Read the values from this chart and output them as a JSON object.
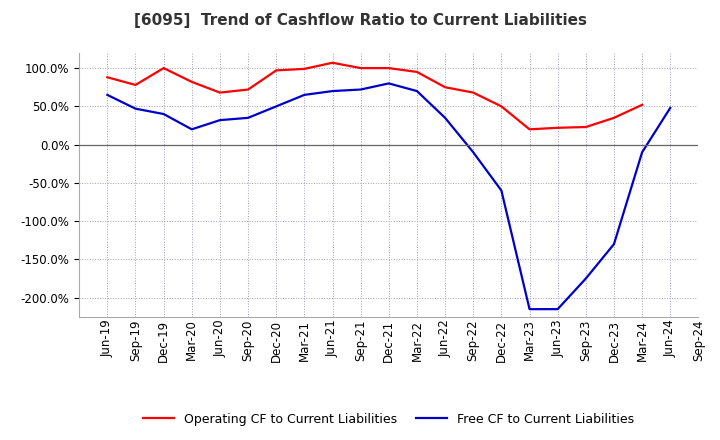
{
  "title": "[6095]  Trend of Cashflow Ratio to Current Liabilities",
  "x_labels": [
    "Jun-19",
    "Sep-19",
    "Dec-19",
    "Mar-20",
    "Jun-20",
    "Sep-20",
    "Dec-20",
    "Mar-21",
    "Jun-21",
    "Sep-21",
    "Dec-21",
    "Mar-22",
    "Jun-22",
    "Sep-22",
    "Dec-22",
    "Mar-23",
    "Jun-23",
    "Sep-23",
    "Dec-23",
    "Mar-24",
    "Jun-24",
    "Sep-24"
  ],
  "operating_cf": [
    88,
    78,
    100,
    82,
    68,
    72,
    97,
    99,
    107,
    100,
    100,
    95,
    75,
    68,
    50,
    20,
    22,
    23,
    35,
    52,
    null,
    null
  ],
  "free_cf": [
    65,
    47,
    40,
    20,
    32,
    35,
    50,
    65,
    70,
    72,
    80,
    70,
    35,
    -10,
    -60,
    -215,
    -215,
    -175,
    -130,
    -10,
    48,
    null
  ],
  "ylim": [
    -225,
    120
  ],
  "yticks": [
    100,
    50,
    0,
    -50,
    -100,
    -150,
    -200
  ],
  "operating_color": "#ff0000",
  "free_color": "#0000cc",
  "background_color": "#ffffff",
  "plot_bg_color": "#ffffff",
  "grid_color": "#a0a0c0",
  "legend_labels": [
    "Operating CF to Current Liabilities",
    "Free CF to Current Liabilities"
  ],
  "title_fontsize": 11,
  "tick_fontsize": 8.5,
  "legend_fontsize": 9
}
